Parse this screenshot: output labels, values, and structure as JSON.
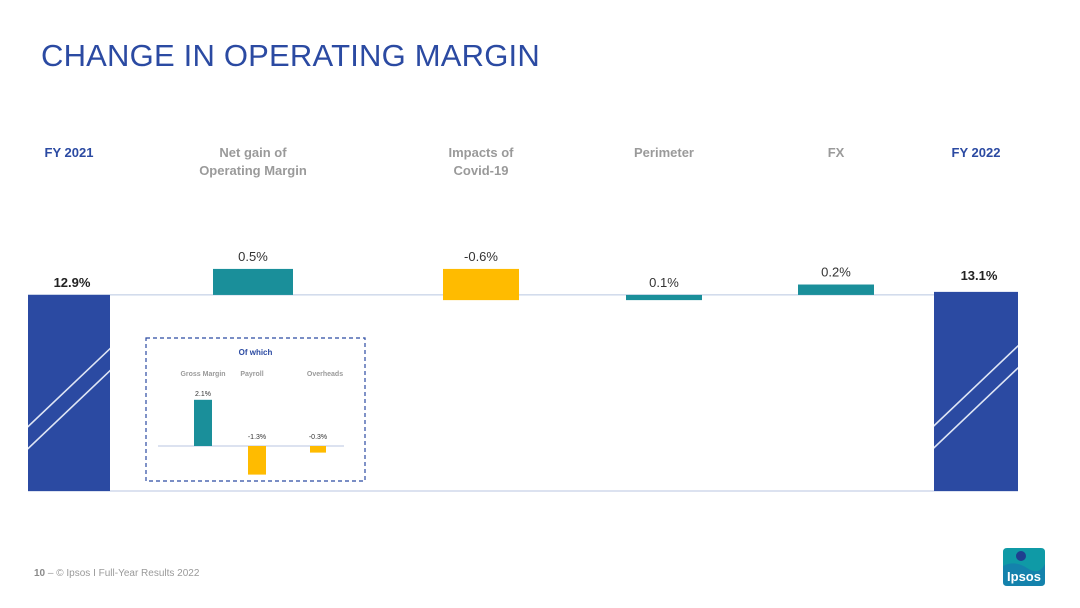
{
  "title": "CHANGE IN OPERATING MARGIN",
  "footer": {
    "page_number": "10",
    "separator": "–",
    "text": "© Ipsos I Full-Year Results 2022"
  },
  "logo": {
    "text": "Ipsos",
    "icon": "ipsos-logo-icon",
    "color": "#0f9aa6"
  },
  "colors": {
    "total": "#2b4aa2",
    "positive": "#1a8f9a",
    "negative": "#ffbb00",
    "title": "#2b4aa2"
  },
  "chart_data": [
    {
      "type": "bar",
      "subtype": "waterfall",
      "categories": [
        "FY 2021",
        "Net gain of Operating Margin",
        "Impacts of Covid-19",
        "Perimeter",
        "FX",
        "FY 2022"
      ],
      "category_lines": [
        [
          "FY 2021"
        ],
        [
          "Net gain of",
          "Operating Margin"
        ],
        [
          "Impacts of",
          "Covid-19"
        ],
        [
          "Perimeter"
        ],
        [
          "FX"
        ],
        [
          "FY 2022"
        ]
      ],
      "values": [
        12.9,
        0.5,
        -0.6,
        0.1,
        0.2,
        13.1
      ],
      "kinds": [
        "total",
        "delta",
        "delta",
        "delta",
        "delta",
        "total"
      ],
      "labels": [
        "12.9%",
        "0.5%",
        "-0.6%",
        "0.1%",
        "0.2%",
        "13.1%"
      ],
      "unit": "%"
    },
    {
      "type": "bar",
      "title": "Of which",
      "categories": [
        "Gross Margin",
        "Payroll",
        "Overheads"
      ],
      "values": [
        2.1,
        -1.3,
        -0.3
      ],
      "labels": [
        "2.1%",
        "-1.3%",
        "-0.3%"
      ],
      "unit": "%"
    }
  ]
}
